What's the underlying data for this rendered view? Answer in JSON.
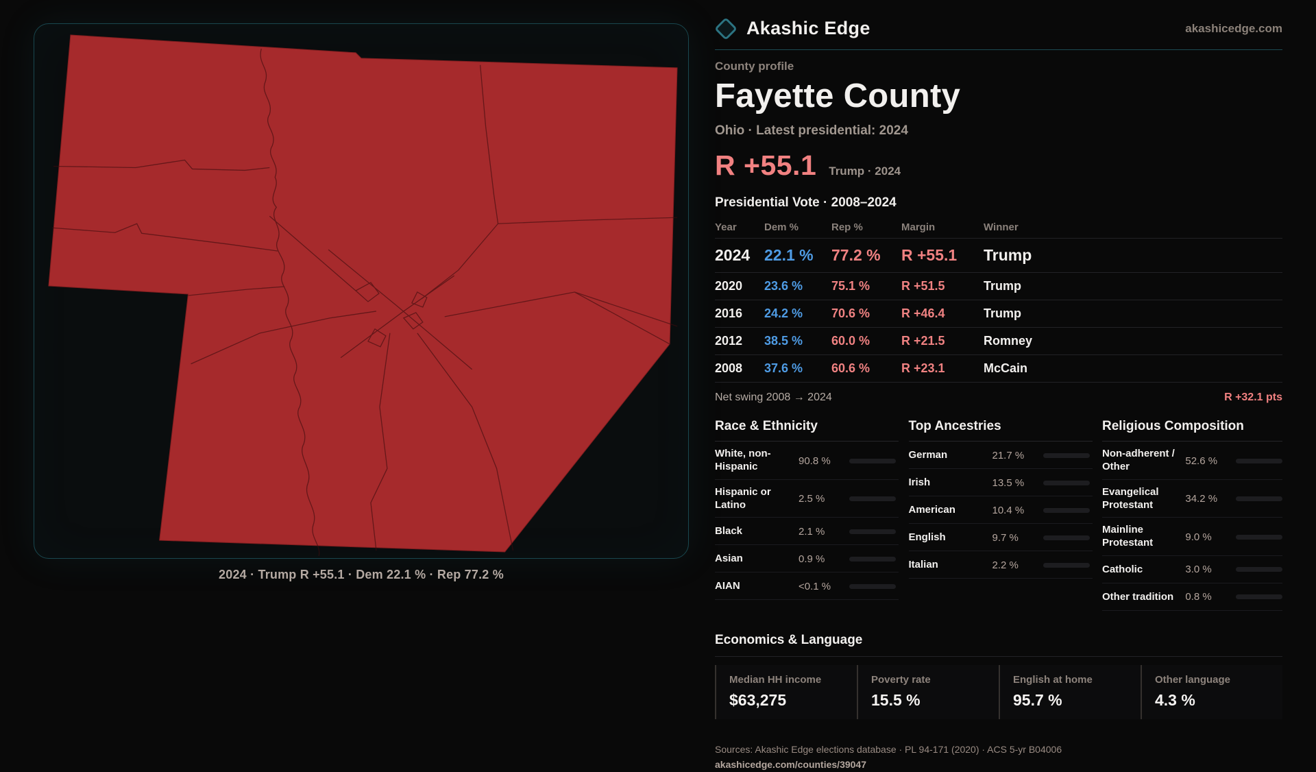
{
  "brand": {
    "name": "Akashic Edge",
    "site": "akashicedge.com",
    "accent_teal": "#2c7482"
  },
  "header": {
    "kicker": "County profile",
    "title": "Fayette County",
    "subtitle": "Ohio · Latest presidential: 2024"
  },
  "headline": {
    "margin": "R +55.1",
    "context": "Trump · 2024",
    "margin_color": "#f18181"
  },
  "vote_table": {
    "title": "Presidential Vote · 2008–2024",
    "columns": [
      "Year",
      "Dem %",
      "Rep %",
      "Margin",
      "Winner"
    ],
    "dem_color": "#4f9ce5",
    "rep_color": "#f08282",
    "rows": [
      {
        "year": "2024",
        "dem": "22.1 %",
        "rep": "77.2 %",
        "margin": "R +55.1",
        "winner": "Trump"
      },
      {
        "year": "2020",
        "dem": "23.6 %",
        "rep": "75.1 %",
        "margin": "R +51.5",
        "winner": "Trump"
      },
      {
        "year": "2016",
        "dem": "24.2 %",
        "rep": "70.6 %",
        "margin": "R +46.4",
        "winner": "Trump"
      },
      {
        "year": "2012",
        "dem": "38.5 %",
        "rep": "60.0 %",
        "margin": "R +21.5",
        "winner": "Romney"
      },
      {
        "year": "2008",
        "dem": "37.6 %",
        "rep": "60.6 %",
        "margin": "R +23.1",
        "winner": "McCain"
      }
    ]
  },
  "net_swing": {
    "label": "Net swing 2008 → 2024",
    "value": "R +32.1 pts"
  },
  "race": {
    "title": "Race & Ethnicity",
    "rows": [
      {
        "label": "White, non-Hispanic",
        "value": "90.8 %",
        "pct": 90.8,
        "color": "#8b9db1"
      },
      {
        "label": "Hispanic or Latino",
        "value": "2.5 %",
        "pct": 2.5,
        "color": "#d98a2b"
      },
      {
        "label": "Black",
        "value": "2.1 %",
        "pct": 2.1,
        "color": "#8477d6"
      },
      {
        "label": "Asian",
        "value": "0.9 %",
        "pct": 0.9,
        "color": "#3fae8f"
      },
      {
        "label": "AIAN",
        "value": "<0.1 %",
        "pct": 0,
        "color": "#8b9db1"
      }
    ]
  },
  "ancestries": {
    "title": "Top Ancestries",
    "rows": [
      {
        "label": "German",
        "value": "21.7 %",
        "pct": 21.7,
        "color": "#93a7ba"
      },
      {
        "label": "Irish",
        "value": "13.5 %",
        "pct": 13.5,
        "color": "#93a7ba"
      },
      {
        "label": "American",
        "value": "10.4 %",
        "pct": 10.4,
        "color": "#93a7ba"
      },
      {
        "label": "English",
        "value": "9.7 %",
        "pct": 9.7,
        "color": "#93a7ba"
      },
      {
        "label": "Italian",
        "value": "2.2 %",
        "pct": 2.2,
        "color": "#d8dce0"
      }
    ]
  },
  "religion": {
    "title": "Religious Composition",
    "rows": [
      {
        "label": "Non-adherent / Other",
        "value": "52.6 %",
        "pct": 52.6,
        "color": "#6f7d93"
      },
      {
        "label": "Evangelical Protestant",
        "value": "34.2 %",
        "pct": 34.2,
        "color": "#d96d6d"
      },
      {
        "label": "Mainline Protestant",
        "value": "9.0 %",
        "pct": 9.0,
        "color": "#4d8fe0"
      },
      {
        "label": "Catholic",
        "value": "3.0 %",
        "pct": 3.0,
        "color": "#d9a42e"
      },
      {
        "label": "Other tradition",
        "value": "0.8 %",
        "pct": 0.8,
        "color": "#c8ccd1"
      }
    ]
  },
  "economics": {
    "title": "Economics & Language",
    "cards": [
      {
        "label": "Median HH income",
        "value": "$63,275"
      },
      {
        "label": "Poverty rate",
        "value": "15.5 %"
      },
      {
        "label": "English at home",
        "value": "95.7 %"
      },
      {
        "label": "Other language",
        "value": "4.3 %"
      }
    ]
  },
  "footer": {
    "sources": "Sources: Akashic Edge elections database · PL 94-171 (2020) · ACS 5-yr B04006",
    "permalink": "akashicedge.com/counties/39047"
  },
  "map": {
    "caption": "2024 · Trump R +55.1 · Dem 22.1 % · Rep 77.2 %",
    "fill": "#a62a2c",
    "border_teal": "#19474f"
  }
}
